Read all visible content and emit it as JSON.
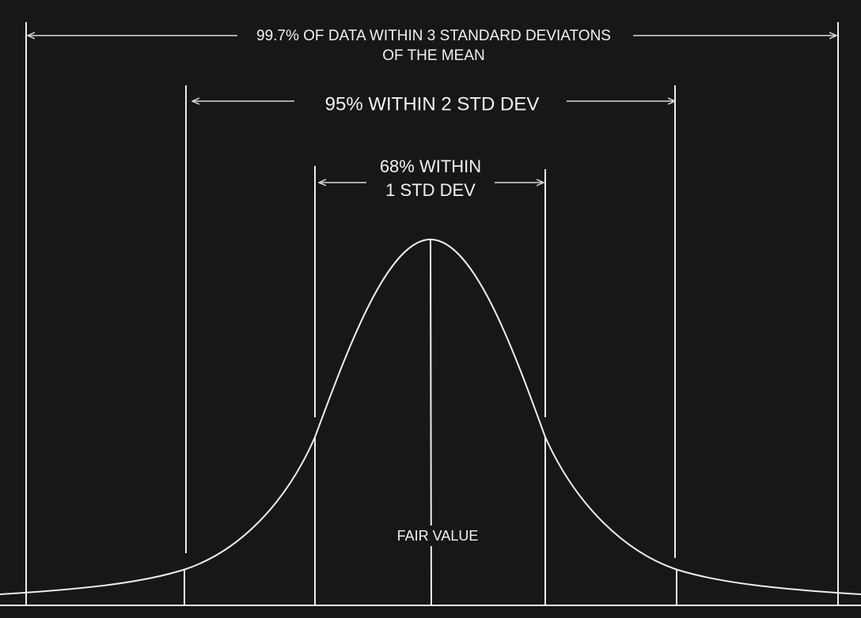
{
  "labels": {
    "three_sigma": [
      "99.7% OF DATA WITHIN 3 STANDARD DEVIATONS",
      "OF THE MEAN"
    ],
    "two_sigma": "95% WITHIN 2 STD DEV",
    "one_sigma": [
      "68% WITHIN",
      "1 STD DEV"
    ],
    "center": "FAIR VALUE"
  }
}
